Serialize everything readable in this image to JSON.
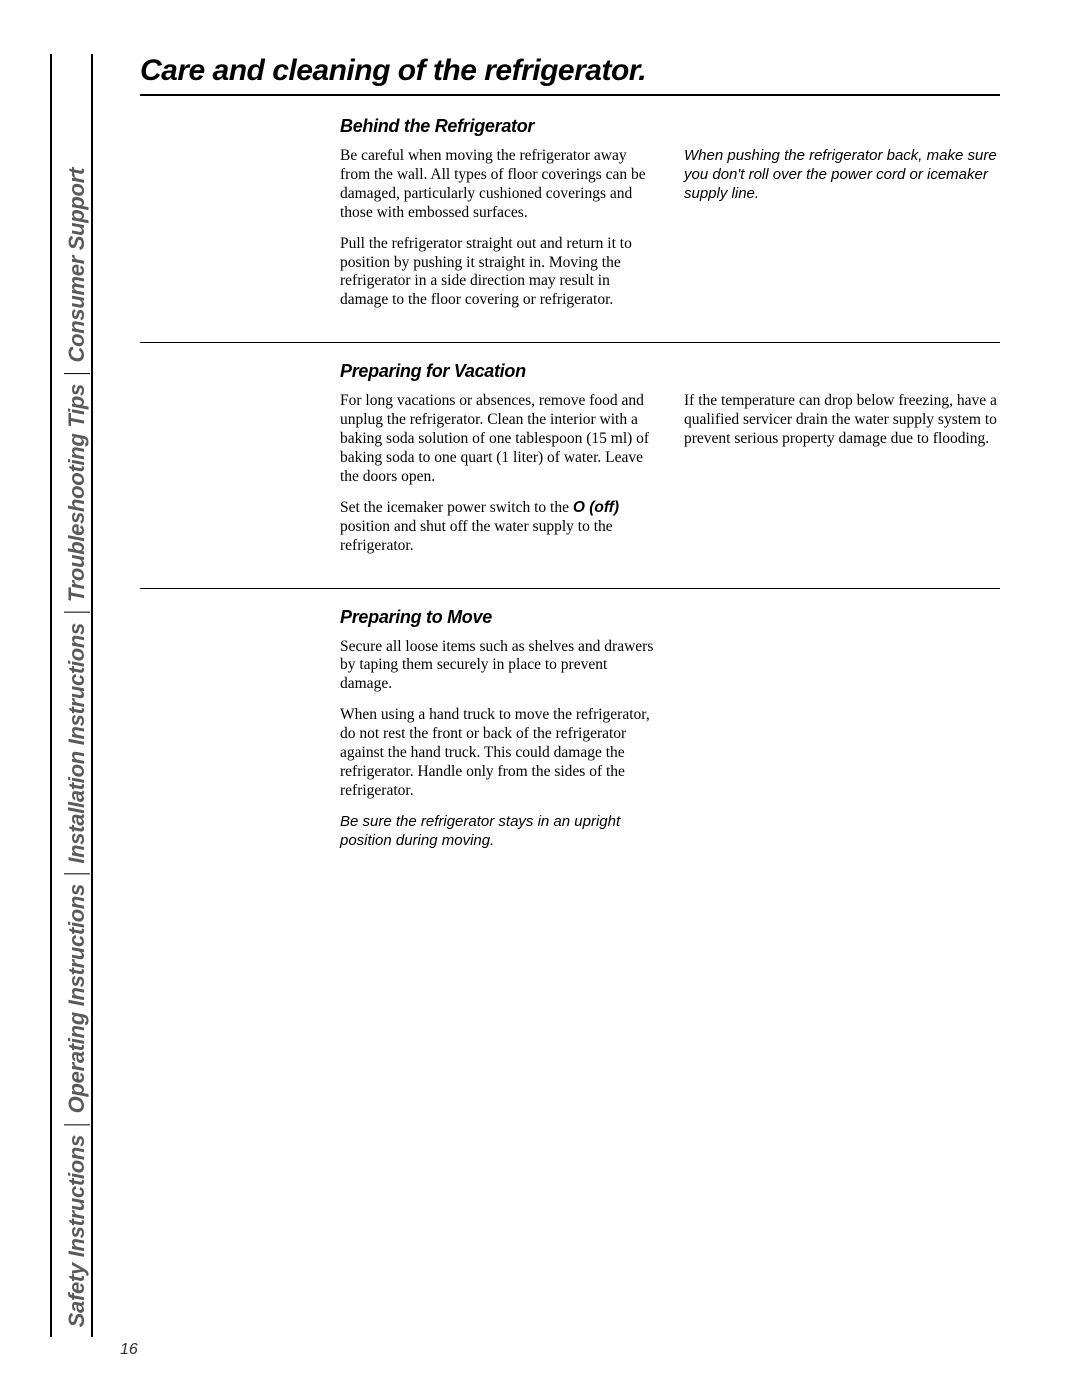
{
  "page_title": "Care and cleaning of the refrigerator.",
  "page_number": "16",
  "sidebar": {
    "items": [
      "Safety Instructions",
      "Operating Instructions",
      "Installation Instructions",
      "Troubleshooting Tips",
      "Consumer Support"
    ]
  },
  "sections": [
    {
      "heading": "Behind the Refrigerator",
      "left": [
        "Be careful when moving the refrigerator away from the wall. All types of floor coverings can be damaged, particularly cushioned coverings and those with embossed surfaces.",
        "Pull the refrigerator straight out and return it to position by pushing it straight in. Moving the refrigerator in a side direction may result in damage to the floor covering or refrigerator."
      ],
      "right_note": "When pushing the refrigerator back, make sure you don't roll over the power cord or icemaker supply line."
    },
    {
      "heading": "Preparing for Vacation",
      "left": [
        "For long vacations or absences, remove food and unplug the refrigerator. Clean the interior with a baking soda solution of one tablespoon (15 ml) of baking soda to one quart (1 liter) of water. Leave the doors open."
      ],
      "left_p2_pre": "Set the icemaker power switch to the ",
      "left_p2_bold": "O (off)",
      "left_p2_post": " position and shut off the water supply to the refrigerator.",
      "right": [
        "If the temperature can drop below freezing, have a qualified servicer drain the water supply system to prevent serious property damage due to flooding."
      ]
    },
    {
      "heading": "Preparing to Move",
      "left": [
        "Secure all loose items such as shelves and drawers by taping them securely in place to prevent damage.",
        "When using a hand truck to move the refrigerator, do not rest the front or back of the refrigerator against the hand truck. This could damage the refrigerator. Handle only from the sides of the refrigerator."
      ],
      "left_note": "Be sure the refrigerator stays in an upright position during moving."
    }
  ]
}
